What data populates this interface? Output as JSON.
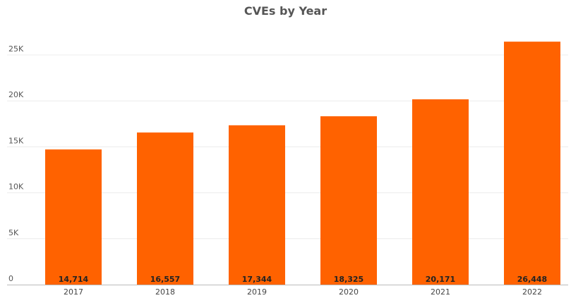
{
  "chart_data": {
    "type": "bar",
    "title": "CVEs by Year",
    "xlabel": "",
    "ylabel": "",
    "categories": [
      "2017",
      "2018",
      "2019",
      "2020",
      "2021",
      "2022"
    ],
    "values": [
      14714,
      16557,
      17344,
      18325,
      20171,
      26448
    ],
    "data_labels": [
      "14,714",
      "16,557",
      "17,344",
      "18,325",
      "20,171",
      "26,448"
    ],
    "ylim": [
      0,
      27000
    ],
    "y_ticks": [
      0,
      5000,
      10000,
      15000,
      20000,
      25000
    ],
    "y_tick_labels": [
      "0",
      "5K",
      "10K",
      "15K",
      "20K",
      "25K"
    ],
    "bar_color": "#FF6200",
    "grid": true,
    "legend": "none"
  }
}
